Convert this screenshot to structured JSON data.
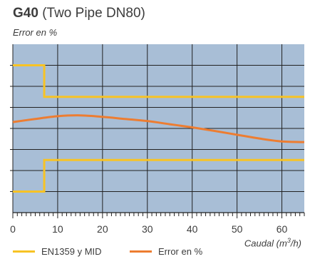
{
  "chart_data": {
    "type": "line",
    "title_code": "G40",
    "title_rest": "(Two Pipe DN80)",
    "ylabel": "Error en %",
    "xlabel": "Caudal (m³/h)",
    "xlim": [
      0,
      65
    ],
    "x_ticks": [
      "0",
      "10",
      "20",
      "30",
      "40",
      "50",
      "60"
    ],
    "x_tick_values": [
      0,
      10,
      20,
      30,
      40,
      50,
      60
    ],
    "y_levels": 8,
    "colors": {
      "plot_bg": "#a8bed6",
      "grid": "#222222",
      "limit": "#f7c325",
      "error": "#ed7d31"
    },
    "series": [
      {
        "name": "EN1359 y MID",
        "color": "#f7c325",
        "segments": [
          {
            "label": "upper limit",
            "x": [
              0,
              7,
              7,
              65
            ],
            "y": [
              7.0,
              7.0,
              5.5,
              5.5
            ]
          },
          {
            "label": "lower limit",
            "x": [
              0,
              7,
              7,
              65
            ],
            "y": [
              1.0,
              1.0,
              2.5,
              2.5
            ]
          }
        ]
      },
      {
        "name": "Error en %",
        "color": "#ed7d31",
        "x": [
          0,
          5,
          10,
          15,
          20,
          25,
          30,
          35,
          40,
          45,
          50,
          55,
          60,
          65
        ],
        "y": [
          4.3,
          4.45,
          4.58,
          4.62,
          4.55,
          4.45,
          4.35,
          4.2,
          4.05,
          3.88,
          3.7,
          3.52,
          3.38,
          3.35
        ]
      }
    ]
  }
}
